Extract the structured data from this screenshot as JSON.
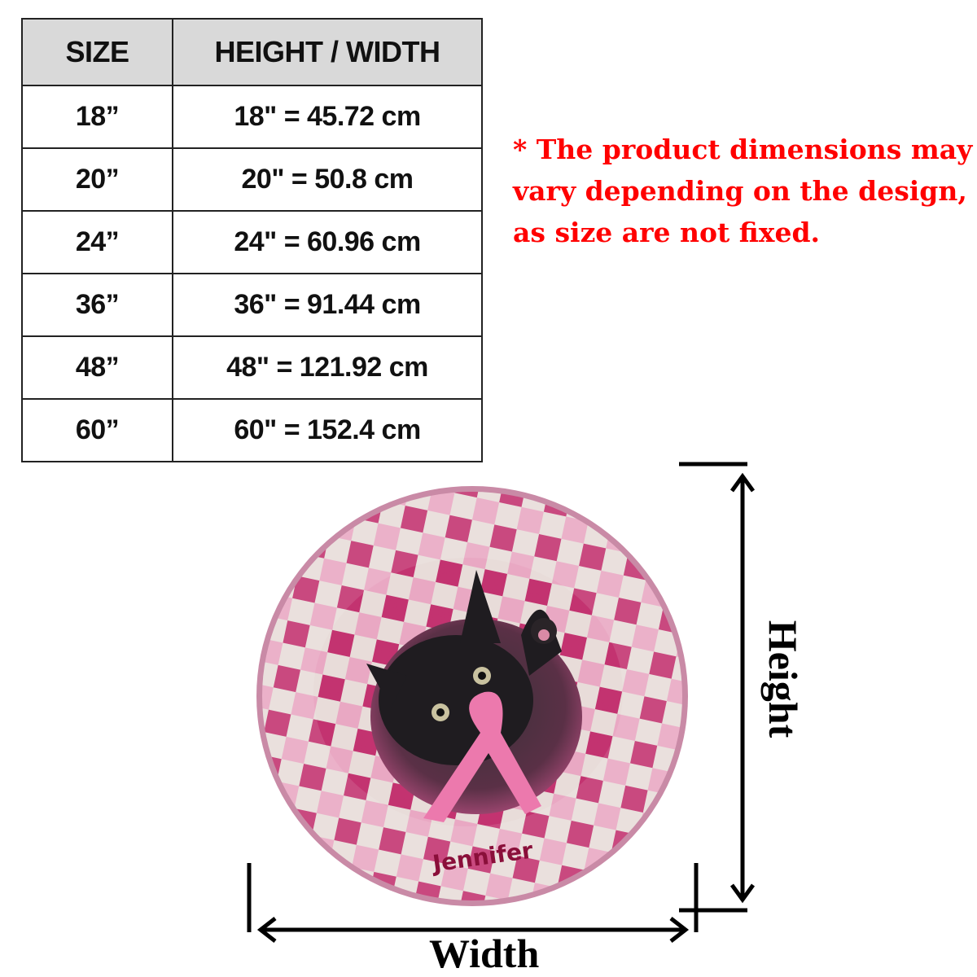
{
  "table": {
    "headers": [
      "SIZE",
      "HEIGHT / WIDTH"
    ],
    "rows": [
      {
        "size": "18”",
        "measure": "18\" = 45.72 cm"
      },
      {
        "size": "20”",
        "measure": "20\" = 50.8 cm"
      },
      {
        "size": "24”",
        "measure": "24\" = 60.96 cm"
      },
      {
        "size": "36”",
        "measure": "36\" = 91.44 cm"
      },
      {
        "size": "48”",
        "measure": "48\" = 121.92 cm"
      },
      {
        "size": "60”",
        "measure": "60\" = 152.4 cm"
      }
    ]
  },
  "note": {
    "lines": [
      "* The product dimensions may",
      "vary depending on the design,",
      "as size are not fixed."
    ],
    "color": "#ff0000"
  },
  "product": {
    "personalized_name": "Jennifer",
    "colors": {
      "pink_dark": "#c2306e",
      "pink_light": "#e9a7c2",
      "cream": "#e8dcd9",
      "name_text": "#8a0f3a"
    }
  },
  "dimensions": {
    "width_label": "Width",
    "height_label": "Height"
  }
}
